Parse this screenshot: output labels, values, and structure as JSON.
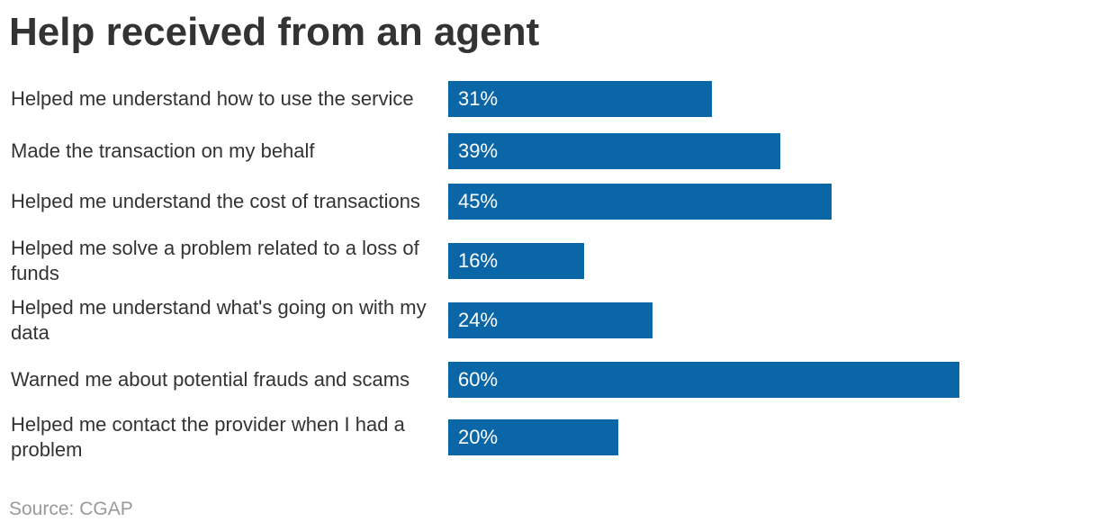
{
  "chart_data": {
    "type": "bar",
    "orientation": "horizontal",
    "title": "Help received from an agent",
    "categories": [
      "Helped me understand how to use the service",
      "Made the transaction on my behalf",
      "Helped me understand the cost of transactions",
      "Helped me solve a problem related to a loss of funds",
      "Helped me understand what's going on with my data",
      "Warned me about potential frauds and scams",
      "Helped me contact the provider when I had a problem"
    ],
    "values": [
      31,
      39,
      45,
      16,
      24,
      60,
      20
    ],
    "data_labels": [
      "31%",
      "39%",
      "45%",
      "16%",
      "24%",
      "60%",
      "20%"
    ],
    "xlim": [
      0,
      64
    ],
    "bar_color": "#0a66a6",
    "grid": false,
    "legend": "none"
  },
  "source": "Source: CGAP"
}
